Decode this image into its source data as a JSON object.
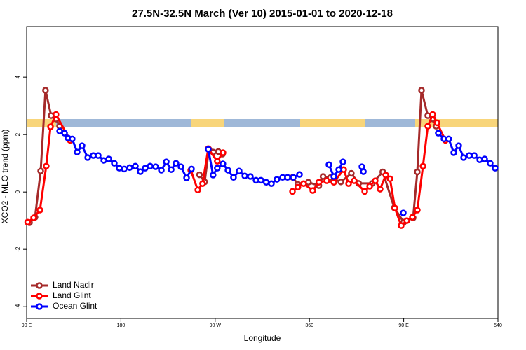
{
  "chart_data": {
    "type": "line",
    "title": "27.5N-32.5N March (Ver 10)   2015-01-01 to 2020-12-18",
    "x_label": "Longitude",
    "y_label": "XCO2 - MLO trend (ppm)",
    "xlim": [
      90,
      540
    ],
    "ylim": [
      -4.41,
      5.76
    ],
    "xticks": [
      {
        "value": 90,
        "label": "90 E"
      },
      180,
      {
        "value": 270,
        "label": "90 W"
      },
      360,
      {
        "value": 450,
        "label": "90 E"
      },
      540
    ],
    "yticks": [
      -4,
      -2,
      0,
      2,
      4
    ],
    "legend": "bottom-left",
    "series": [
      {
        "name": "Land Nadir",
        "color": "#a52a2a",
        "x": [
          92.7,
          98,
          103.4,
          108,
          113.4,
          118,
          121.5,
          190,
          255,
          260,
          264,
          268,
          273,
          277,
          310,
          344,
          349,
          359,
          369,
          373,
          380,
          390,
          400,
          407,
          420,
          430,
          441,
          450,
          459,
          463,
          467,
          473,
          478,
          481
        ],
        "values": [
          -1.07,
          -0.88,
          0.73,
          3.54,
          2.66,
          2.54,
          2.29,
          null,
          0.6,
          0.35,
          1.49,
          1.39,
          1.41,
          1.32,
          null,
          0.51,
          0.27,
          0.34,
          0.22,
          0.54,
          0.5,
          0.35,
          0.65,
          0.3,
          0.3,
          0.7,
          -0.55,
          -1.05,
          -0.9,
          0.7,
          3.54,
          2.66,
          2.54,
          2.29
        ]
      },
      {
        "name": "Land Glint",
        "color": "#ff0000",
        "x": [
          91,
          96.7,
          102.7,
          108.7,
          112.8,
          118,
          131.5,
          190,
          246.7,
          253.4,
          258,
          263.4,
          272,
          277.5,
          310,
          343.8,
          349,
          354.5,
          363.2,
          369,
          376.6,
          383.3,
          392.7,
          397.4,
          402.7,
          412.8,
          417.5,
          422.8,
          427.5,
          432.9,
          436.9,
          441.6,
          447.6,
          453,
          458.3,
          463,
          468.4,
          473,
          477.7,
          481.8,
          489.8
        ],
        "values": [
          -1.05,
          -0.9,
          -0.63,
          0.9,
          2.27,
          2.7,
          1.8,
          null,
          0.76,
          0.07,
          0.29,
          1.51,
          1.07,
          1.37,
          null,
          0.02,
          0.17,
          0.29,
          0.05,
          0.34,
          0.39,
          0.34,
          0.78,
          0.29,
          0.39,
          0.02,
          0.2,
          0.39,
          0.1,
          0.59,
          0.46,
          -0.56,
          -1.17,
          -1.0,
          -0.88,
          -0.63,
          0.9,
          2.29,
          2.7,
          2.41,
          1.8
        ]
      },
      {
        "name": "Ocean Glint",
        "color": "#0000ff",
        "x": [
          121.5,
          126.2,
          129.5,
          133.5,
          138.2,
          142.9,
          148.3,
          153.6,
          158.3,
          163.7,
          168.4,
          173.7,
          178.4,
          183.1,
          188.4,
          193.8,
          198.5,
          203.2,
          207.9,
          213.2,
          218.6,
          223.3,
          228,
          232.6,
          237.3,
          242.7,
          247.4,
          255,
          263.4,
          268,
          272,
          277.4,
          282.2,
          287.5,
          292.9,
          298.3,
          303.6,
          309,
          313.7,
          318.7,
          323.7,
          329,
          334.4,
          339.1,
          344.5,
          350.5,
          365,
          378.6,
          383.3,
          388,
          392,
          400,
          410.1,
          411.5,
          430,
          449.6,
          466,
          483,
          488.4,
          493,
          497.8,
          502.5,
          507.2,
          512.5,
          517.3,
          522.6,
          527.3,
          532.6,
          537.3
        ],
        "values": [
          2.12,
          2.05,
          1.88,
          1.85,
          1.39,
          1.61,
          1.2,
          1.27,
          1.27,
          1.1,
          1.15,
          1.0,
          0.83,
          0.8,
          0.85,
          0.9,
          0.71,
          0.83,
          0.9,
          0.88,
          0.76,
          1.05,
          0.78,
          1.0,
          0.88,
          0.49,
          0.8,
          null,
          1.49,
          0.59,
          0.83,
          0.98,
          0.76,
          0.51,
          0.73,
          0.56,
          0.54,
          0.41,
          0.41,
          0.34,
          0.29,
          0.44,
          0.51,
          0.51,
          0.51,
          0.61,
          null,
          0.95,
          0.54,
          0.78,
          1.05,
          null,
          0.88,
          0.71,
          null,
          -0.73,
          null,
          2.05,
          1.85,
          1.85,
          1.37,
          1.61,
          1.2,
          1.27,
          1.27,
          1.12,
          1.15,
          1.0,
          0.83
        ]
      }
    ]
  }
}
